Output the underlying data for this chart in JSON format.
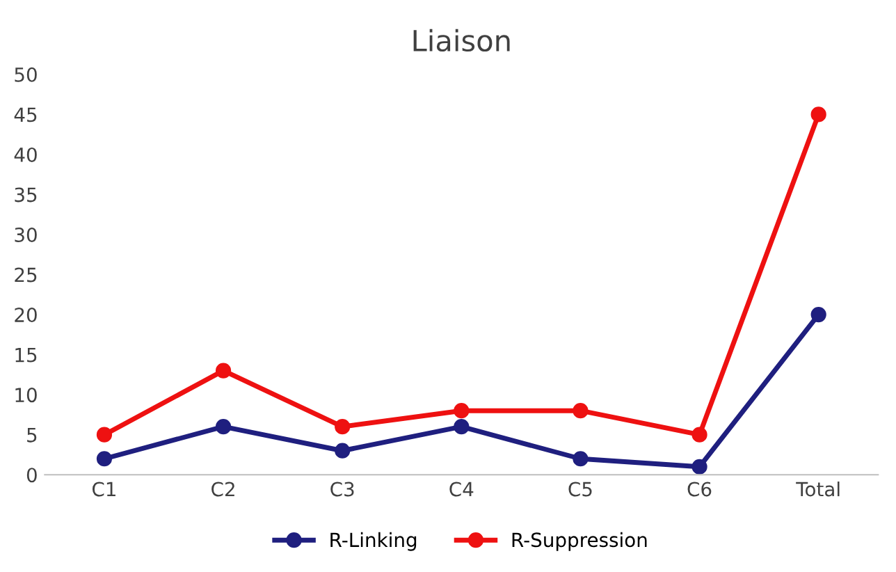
{
  "chart_data": {
    "type": "line",
    "title": "Liaison",
    "categories": [
      "C1",
      "C2",
      "C3",
      "C4",
      "C5",
      "C6",
      "Total"
    ],
    "series": [
      {
        "name": "R-Linking",
        "color": "#1f1f7f",
        "values": [
          2,
          6,
          3,
          6,
          2,
          1,
          20
        ]
      },
      {
        "name": "R-Suppression",
        "color": "#ee1111",
        "values": [
          5,
          13,
          6,
          8,
          8,
          5,
          45
        ]
      }
    ],
    "ylim": [
      0,
      50
    ],
    "yticks": [
      0,
      5,
      10,
      15,
      20,
      25,
      30,
      35,
      40,
      45,
      50
    ],
    "grid": false,
    "legend": "bottom",
    "marker": "circle",
    "line_style": "solid"
  }
}
